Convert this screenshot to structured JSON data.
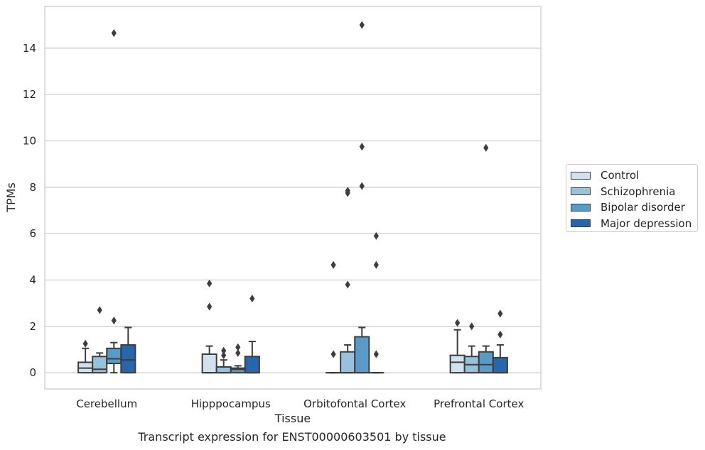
{
  "caption": "Transcript expression for ENST00000603501 by tissue",
  "chart_data": {
    "type": "box",
    "title": "",
    "xlabel": "Tissue",
    "ylabel": "TPMs",
    "ylim": [
      -0.7,
      15.8
    ],
    "yticks": [
      0,
      2,
      4,
      6,
      8,
      10,
      12,
      14
    ],
    "grid": "horizontal",
    "legend_position": "right",
    "categories": [
      "Cerebellum",
      "Hipppocampus",
      "Orbitofontal Cortex",
      "Prefrontal Cortex"
    ],
    "series": [
      {
        "name": "Control",
        "color": "#d1e1f0",
        "boxes": [
          {
            "q1": 0.0,
            "median": 0.2,
            "q3": 0.45,
            "whisker_low": 0.0,
            "whisker_high": 1.05,
            "outliers": [
              1.25
            ]
          },
          {
            "q1": 0.0,
            "median": 0.0,
            "q3": 0.8,
            "whisker_low": 0.0,
            "whisker_high": 1.15,
            "outliers": [
              2.85,
              3.85
            ]
          },
          {
            "q1": 0.0,
            "median": 0.0,
            "q3": 0.0,
            "whisker_low": 0.0,
            "whisker_high": 0.0,
            "outliers": [
              0.8,
              4.65
            ]
          },
          {
            "q1": 0.0,
            "median": 0.45,
            "q3": 0.75,
            "whisker_low": 0.0,
            "whisker_high": 1.85,
            "outliers": [
              2.15
            ]
          }
        ]
      },
      {
        "name": "Schizophrenia",
        "color": "#97c1dd",
        "boxes": [
          {
            "q1": 0.0,
            "median": 0.15,
            "q3": 0.7,
            "whisker_low": 0.0,
            "whisker_high": 0.85,
            "outliers": [
              2.7
            ]
          },
          {
            "q1": 0.0,
            "median": 0.0,
            "q3": 0.25,
            "whisker_low": 0.0,
            "whisker_high": 0.55,
            "outliers": [
              0.75,
              0.95
            ]
          },
          {
            "q1": 0.0,
            "median": 0.0,
            "q3": 0.9,
            "whisker_low": 0.0,
            "whisker_high": 1.2,
            "outliers": [
              3.8,
              7.75,
              7.85
            ]
          },
          {
            "q1": 0.0,
            "median": 0.35,
            "q3": 0.7,
            "whisker_low": 0.0,
            "whisker_high": 1.15,
            "outliers": [
              2.0
            ]
          }
        ]
      },
      {
        "name": "Bipolar disorder",
        "color": "#5a9ac9",
        "boxes": [
          {
            "q1": 0.4,
            "median": 0.6,
            "q3": 1.05,
            "whisker_low": 0.0,
            "whisker_high": 1.3,
            "outliers": [
              2.25,
              14.65
            ]
          },
          {
            "q1": 0.0,
            "median": 0.15,
            "q3": 0.2,
            "whisker_low": 0.0,
            "whisker_high": 0.3,
            "outliers": [
              0.85,
              1.1
            ]
          },
          {
            "q1": 0.0,
            "median": 0.0,
            "q3": 1.55,
            "whisker_low": 0.0,
            "whisker_high": 1.95,
            "outliers": [
              8.05,
              9.75,
              15.0
            ]
          },
          {
            "q1": 0.0,
            "median": 0.35,
            "q3": 0.9,
            "whisker_low": 0.0,
            "whisker_high": 1.15,
            "outliers": [
              9.7
            ]
          }
        ]
      },
      {
        "name": "Major depression",
        "color": "#2566ad",
        "boxes": [
          {
            "q1": 0.0,
            "median": 0.55,
            "q3": 1.2,
            "whisker_low": 0.0,
            "whisker_high": 1.95,
            "outliers": []
          },
          {
            "q1": 0.0,
            "median": 0.0,
            "q3": 0.7,
            "whisker_low": 0.0,
            "whisker_high": 1.35,
            "outliers": [
              3.2
            ]
          },
          {
            "q1": 0.0,
            "median": 0.0,
            "q3": 0.0,
            "whisker_low": 0.0,
            "whisker_high": 0.0,
            "outliers": [
              0.8,
              4.65,
              5.9
            ]
          },
          {
            "q1": 0.0,
            "median": 0.0,
            "q3": 0.65,
            "whisker_low": 0.0,
            "whisker_high": 1.2,
            "outliers": [
              1.65,
              2.55
            ]
          }
        ]
      }
    ]
  }
}
